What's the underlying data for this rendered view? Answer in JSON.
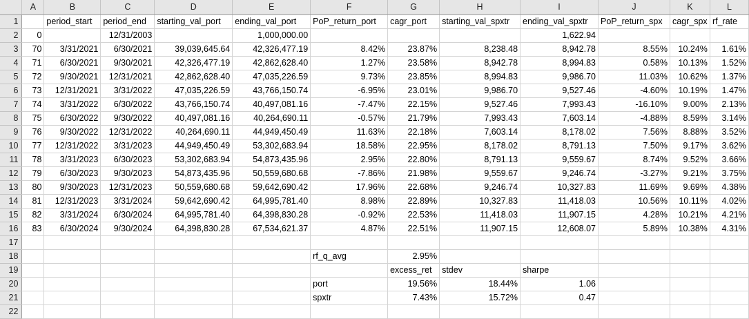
{
  "columns": [
    "A",
    "B",
    "C",
    "D",
    "E",
    "F",
    "G",
    "H",
    "I",
    "J",
    "K",
    "L"
  ],
  "header": [
    "",
    "period_start",
    "period_end",
    "starting_val_port",
    "ending_val_port",
    "PoP_return_port",
    "cagr_port",
    "starting_val_spxtr",
    "ending_val_spxtr",
    "PoP_return_spx",
    "cagr_spx",
    "rf_rate"
  ],
  "rows": [
    [
      "0",
      "",
      "12/31/2003",
      "",
      "1,000,000.00",
      "",
      "",
      "",
      "1,622.94",
      "",
      "",
      ""
    ],
    [
      "70",
      "3/31/2021",
      "6/30/2021",
      "39,039,645.64",
      "42,326,477.19",
      "8.42%",
      "23.87%",
      "8,238.48",
      "8,942.78",
      "8.55%",
      "10.24%",
      "1.61%"
    ],
    [
      "71",
      "6/30/2021",
      "9/30/2021",
      "42,326,477.19",
      "42,862,628.40",
      "1.27%",
      "23.58%",
      "8,942.78",
      "8,994.83",
      "0.58%",
      "10.13%",
      "1.52%"
    ],
    [
      "72",
      "9/30/2021",
      "12/31/2021",
      "42,862,628.40",
      "47,035,226.59",
      "9.73%",
      "23.85%",
      "8,994.83",
      "9,986.70",
      "11.03%",
      "10.62%",
      "1.37%"
    ],
    [
      "73",
      "12/31/2021",
      "3/31/2022",
      "47,035,226.59",
      "43,766,150.74",
      "-6.95%",
      "23.01%",
      "9,986.70",
      "9,527.46",
      "-4.60%",
      "10.19%",
      "1.47%"
    ],
    [
      "74",
      "3/31/2022",
      "6/30/2022",
      "43,766,150.74",
      "40,497,081.16",
      "-7.47%",
      "22.15%",
      "9,527.46",
      "7,993.43",
      "-16.10%",
      "9.00%",
      "2.13%"
    ],
    [
      "75",
      "6/30/2022",
      "9/30/2022",
      "40,497,081.16",
      "40,264,690.11",
      "-0.57%",
      "21.79%",
      "7,993.43",
      "7,603.14",
      "-4.88%",
      "8.59%",
      "3.14%"
    ],
    [
      "76",
      "9/30/2022",
      "12/31/2022",
      "40,264,690.11",
      "44,949,450.49",
      "11.63%",
      "22.18%",
      "7,603.14",
      "8,178.02",
      "7.56%",
      "8.88%",
      "3.52%"
    ],
    [
      "77",
      "12/31/2022",
      "3/31/2023",
      "44,949,450.49",
      "53,302,683.94",
      "18.58%",
      "22.95%",
      "8,178.02",
      "8,791.13",
      "7.50%",
      "9.17%",
      "3.62%"
    ],
    [
      "78",
      "3/31/2023",
      "6/30/2023",
      "53,302,683.94",
      "54,873,435.96",
      "2.95%",
      "22.80%",
      "8,791.13",
      "9,559.67",
      "8.74%",
      "9.52%",
      "3.66%"
    ],
    [
      "79",
      "6/30/2023",
      "9/30/2023",
      "54,873,435.96",
      "50,559,680.68",
      "-7.86%",
      "21.98%",
      "9,559.67",
      "9,246.74",
      "-3.27%",
      "9.21%",
      "3.75%"
    ],
    [
      "80",
      "9/30/2023",
      "12/31/2023",
      "50,559,680.68",
      "59,642,690.42",
      "17.96%",
      "22.68%",
      "9,246.74",
      "10,327.83",
      "11.69%",
      "9.69%",
      "4.38%"
    ],
    [
      "81",
      "12/31/2023",
      "3/31/2024",
      "59,642,690.42",
      "64,995,781.40",
      "8.98%",
      "22.89%",
      "10,327.83",
      "11,418.03",
      "10.56%",
      "10.11%",
      "4.02%"
    ],
    [
      "82",
      "3/31/2024",
      "6/30/2024",
      "64,995,781.40",
      "64,398,830.28",
      "-0.92%",
      "22.53%",
      "11,418.03",
      "11,907.15",
      "4.28%",
      "10.21%",
      "4.21%"
    ],
    [
      "83",
      "6/30/2024",
      "9/30/2024",
      "64,398,830.28",
      "67,534,621.37",
      "4.87%",
      "22.51%",
      "11,907.15",
      "12,608.07",
      "5.89%",
      "10.38%",
      "4.31%"
    ],
    [
      "",
      "",
      "",
      "",
      "",
      "",
      "",
      "",
      "",
      "",
      "",
      ""
    ],
    [
      "",
      "",
      "",
      "",
      "",
      "rf_q_avg",
      "2.95%",
      "",
      "",
      "",
      "",
      ""
    ],
    [
      "",
      "",
      "",
      "",
      "",
      "",
      "excess_ret",
      "stdev",
      "sharpe",
      "",
      "",
      ""
    ],
    [
      "",
      "",
      "",
      "",
      "",
      "port",
      "19.56%",
      "18.44%",
      "1.06",
      "",
      "",
      ""
    ],
    [
      "",
      "",
      "",
      "",
      "",
      "spxtr",
      "7.43%",
      "15.72%",
      "0.47",
      "",
      "",
      ""
    ],
    [
      "",
      "",
      "",
      "",
      "",
      "",
      "",
      "",
      "",
      "",
      "",
      ""
    ]
  ]
}
